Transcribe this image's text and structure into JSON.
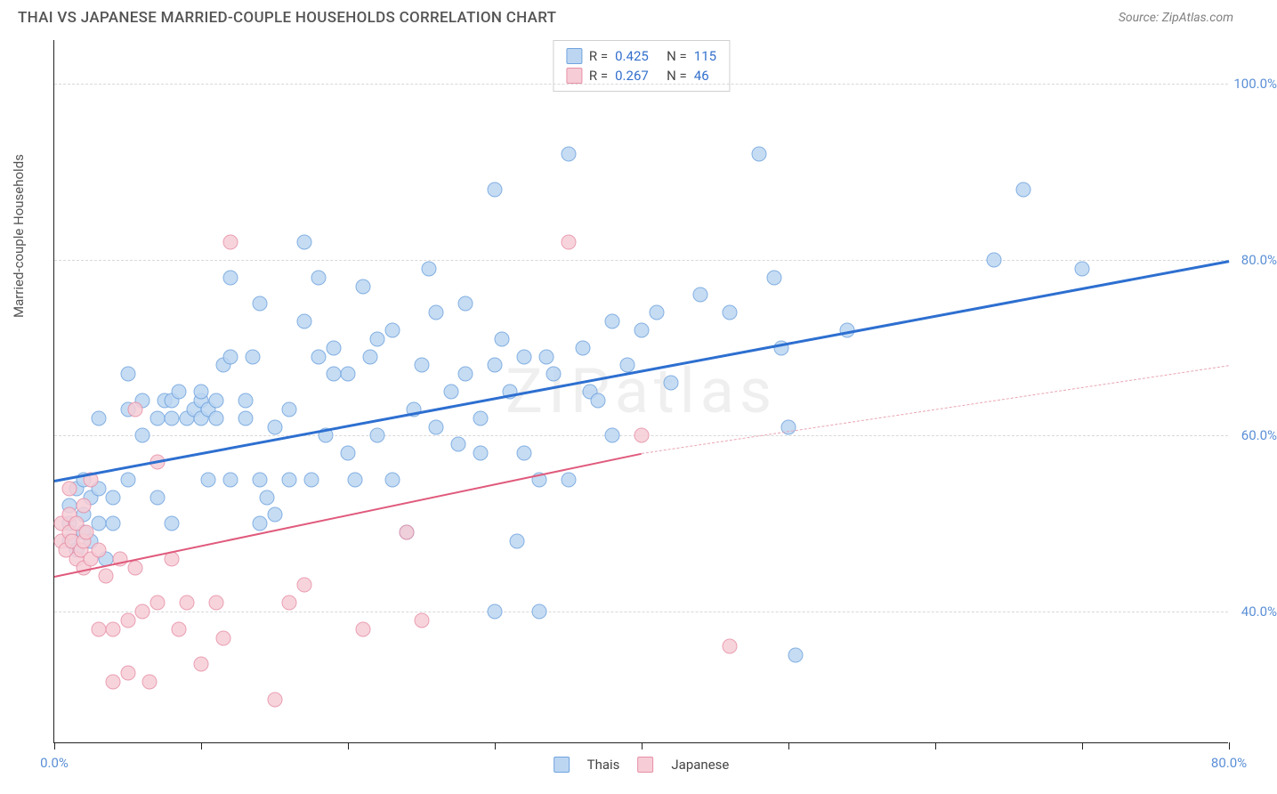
{
  "header": {
    "title": "THAI VS JAPANESE MARRIED-COUPLE HOUSEHOLDS CORRELATION CHART",
    "source": "Source: ZipAtlas.com"
  },
  "chart": {
    "type": "scatter",
    "watermark": "ZIPatlas",
    "y_axis_label": "Married-couple Households",
    "xlim": [
      0,
      80
    ],
    "ylim": [
      25,
      105
    ],
    "x_ticks": [
      0,
      10,
      20,
      30,
      40,
      50,
      60,
      70,
      80
    ],
    "x_tick_labels": {
      "0": "0.0%",
      "80": "80.0%"
    },
    "y_gridlines": [
      40,
      60,
      80,
      100
    ],
    "y_tick_labels": {
      "40": "40.0%",
      "60": "60.0%",
      "80": "80.0%",
      "100": "100.0%"
    },
    "background_color": "#ffffff",
    "grid_color": "#d8d8d8",
    "axis_color": "#222222",
    "tick_label_color": "#5b8fd6",
    "marker_radius": 8.5,
    "marker_stroke_width": 1.2,
    "series": [
      {
        "name": "Thais",
        "fill": "#bcd6f2",
        "stroke": "#6fa3de",
        "R": "0.425",
        "N": "115",
        "trend": {
          "y_at_x0": 55,
          "y_at_x80": 80,
          "color": "#2d6fd0",
          "width": 3,
          "dash": "solid"
        },
        "points": [
          [
            1,
            48
          ],
          [
            1,
            50
          ],
          [
            1,
            52
          ],
          [
            1.5,
            47
          ],
          [
            1.5,
            54
          ],
          [
            2,
            49
          ],
          [
            2,
            51
          ],
          [
            2,
            55
          ],
          [
            2.5,
            48
          ],
          [
            2.5,
            53
          ],
          [
            3,
            50
          ],
          [
            3,
            54
          ],
          [
            3,
            62
          ],
          [
            3.5,
            46
          ],
          [
            4,
            50
          ],
          [
            4,
            53
          ],
          [
            5,
            55
          ],
          [
            5,
            63
          ],
          [
            5,
            67
          ],
          [
            6,
            60
          ],
          [
            6,
            64
          ],
          [
            7,
            53
          ],
          [
            7,
            62
          ],
          [
            7.5,
            64
          ],
          [
            8,
            50
          ],
          [
            8,
            62
          ],
          [
            8,
            64
          ],
          [
            8.5,
            65
          ],
          [
            9,
            62
          ],
          [
            9.5,
            63
          ],
          [
            10,
            62
          ],
          [
            10,
            64
          ],
          [
            10,
            65
          ],
          [
            10.5,
            55
          ],
          [
            10.5,
            63
          ],
          [
            11,
            62
          ],
          [
            11,
            64
          ],
          [
            11.5,
            68
          ],
          [
            12,
            55
          ],
          [
            12,
            69
          ],
          [
            12,
            78
          ],
          [
            13,
            62
          ],
          [
            13,
            64
          ],
          [
            13.5,
            69
          ],
          [
            14,
            50
          ],
          [
            14,
            55
          ],
          [
            14,
            75
          ],
          [
            14.5,
            53
          ],
          [
            15,
            51
          ],
          [
            15,
            61
          ],
          [
            16,
            55
          ],
          [
            16,
            63
          ],
          [
            17,
            82
          ],
          [
            17,
            73
          ],
          [
            17.5,
            55
          ],
          [
            18,
            69
          ],
          [
            18,
            78
          ],
          [
            18.5,
            60
          ],
          [
            19,
            70
          ],
          [
            19,
            67
          ],
          [
            20,
            58
          ],
          [
            20,
            67
          ],
          [
            20.5,
            55
          ],
          [
            21,
            77
          ],
          [
            21.5,
            69
          ],
          [
            22,
            60
          ],
          [
            22,
            71
          ],
          [
            23,
            55
          ],
          [
            23,
            72
          ],
          [
            24,
            49
          ],
          [
            24.5,
            63
          ],
          [
            25,
            68
          ],
          [
            25.5,
            79
          ],
          [
            26,
            61
          ],
          [
            26,
            74
          ],
          [
            27,
            65
          ],
          [
            27.5,
            59
          ],
          [
            28,
            67
          ],
          [
            28,
            75
          ],
          [
            29,
            58
          ],
          [
            29,
            62
          ],
          [
            30,
            40
          ],
          [
            30,
            68
          ],
          [
            30,
            88
          ],
          [
            30.5,
            71
          ],
          [
            31,
            65
          ],
          [
            31.5,
            48
          ],
          [
            32,
            58
          ],
          [
            32,
            69
          ],
          [
            33,
            40
          ],
          [
            33,
            55
          ],
          [
            33.5,
            69
          ],
          [
            34,
            67
          ],
          [
            35,
            92
          ],
          [
            35,
            55
          ],
          [
            36,
            70
          ],
          [
            36.5,
            65
          ],
          [
            37,
            64
          ],
          [
            38,
            60
          ],
          [
            38,
            73
          ],
          [
            39,
            68
          ],
          [
            40,
            72
          ],
          [
            41,
            74
          ],
          [
            42,
            66
          ],
          [
            44,
            76
          ],
          [
            46,
            74
          ],
          [
            48,
            92
          ],
          [
            49,
            78
          ],
          [
            49.5,
            70
          ],
          [
            50,
            61
          ],
          [
            50.5,
            35
          ],
          [
            54,
            72
          ],
          [
            64,
            80
          ],
          [
            66,
            88
          ],
          [
            70,
            79
          ]
        ]
      },
      {
        "name": "Japanese",
        "fill": "#f6cdd6",
        "stroke": "#e78fa6",
        "R": "0.267",
        "N": "46",
        "trend_solid": {
          "y_at_x0": 44,
          "y_at_x40": 58,
          "color": "#e05a7c",
          "width": 2.5
        },
        "trend_dash": {
          "y_at_x40": 58,
          "y_at_x80": 68,
          "color": "#e9a5b4",
          "width": 1.5
        },
        "points": [
          [
            0.5,
            50
          ],
          [
            0.5,
            48
          ],
          [
            0.8,
            47
          ],
          [
            1,
            49
          ],
          [
            1,
            51
          ],
          [
            1,
            54
          ],
          [
            1.2,
            48
          ],
          [
            1.5,
            46
          ],
          [
            1.5,
            50
          ],
          [
            1.8,
            47
          ],
          [
            2,
            45
          ],
          [
            2,
            48
          ],
          [
            2,
            52
          ],
          [
            2.2,
            49
          ],
          [
            2.5,
            46
          ],
          [
            2.5,
            55
          ],
          [
            3,
            38
          ],
          [
            3,
            47
          ],
          [
            3.5,
            44
          ],
          [
            4,
            32
          ],
          [
            4,
            38
          ],
          [
            4.5,
            46
          ],
          [
            5,
            33
          ],
          [
            5,
            39
          ],
          [
            5.5,
            45
          ],
          [
            5.5,
            63
          ],
          [
            6,
            40
          ],
          [
            6.5,
            32
          ],
          [
            7,
            41
          ],
          [
            7,
            57
          ],
          [
            8,
            46
          ],
          [
            8.5,
            38
          ],
          [
            9,
            41
          ],
          [
            10,
            34
          ],
          [
            11,
            41
          ],
          [
            11.5,
            37
          ],
          [
            12,
            82
          ],
          [
            15,
            30
          ],
          [
            16,
            41
          ],
          [
            17,
            43
          ],
          [
            21,
            38
          ],
          [
            24,
            49
          ],
          [
            25,
            39
          ],
          [
            35,
            82
          ],
          [
            40,
            60
          ],
          [
            46,
            36
          ]
        ]
      }
    ],
    "legend_bottom": [
      "Thais",
      "Japanese"
    ]
  }
}
